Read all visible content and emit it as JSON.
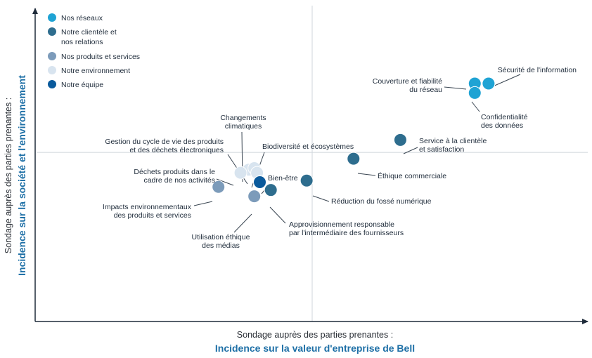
{
  "chart_data": {
    "type": "scatter",
    "title": "",
    "xlabel": "Sondage auprès des parties prenantes :",
    "xlabel_emphasis": "Incidence sur la valeur d'entreprise de Bell",
    "ylabel": "Sondage auprès des parties prenantes :",
    "ylabel_emphasis": "Incidence sur la société et l'environnement",
    "xlim": [
      0,
      10
    ],
    "ylim": [
      0,
      10
    ],
    "grid": false,
    "quadrant_dividers": {
      "x": 5.0,
      "y": 5.4
    },
    "legend_position": "top-left",
    "categories": [
      {
        "key": "reseaux",
        "name": "Nos réseaux",
        "color": "#1fa3d4"
      },
      {
        "key": "clientele",
        "name": "Notre clientèle et\nnos relations",
        "color": "#2e6d8e"
      },
      {
        "key": "produits",
        "name": "Nos produits et services",
        "color": "#7c9bba"
      },
      {
        "key": "environnement",
        "name": "Notre environnement",
        "color": "#d8e4ef"
      },
      {
        "key": "equipe",
        "name": "Notre équipe",
        "color": "#0a5a9c"
      }
    ],
    "points": [
      {
        "label": "Sécurité de l'information",
        "category": "reseaux",
        "x": 8.2,
        "y": 7.6
      },
      {
        "label": "Couverture et fiabilité\ndu réseau",
        "category": "reseaux",
        "x": 7.95,
        "y": 7.6
      },
      {
        "label": "Confidentialité\ndes données",
        "category": "reseaux",
        "x": 7.95,
        "y": 7.3
      },
      {
        "label": "Service à la clientèle\net satisfaction",
        "category": "clientele",
        "x": 6.6,
        "y": 5.8
      },
      {
        "label": "Éthique commerciale",
        "category": "clientele",
        "x": 5.75,
        "y": 5.2
      },
      {
        "label": "Réduction du fossé numérique",
        "category": "clientele",
        "x": 4.9,
        "y": 4.5
      },
      {
        "label": "Approvisionnement responsable\npar l'intermédiaire des fournisseurs",
        "category": "clientele",
        "x": 4.25,
        "y": 4.2
      },
      {
        "label": "Impacts environnementaux\ndes produits et services",
        "category": "produits",
        "x": 3.3,
        "y": 4.3
      },
      {
        "label": "Utilisation éthique\ndes médias",
        "category": "produits",
        "x": 3.95,
        "y": 4.0
      },
      {
        "label": "Changements\nclimatiques",
        "category": "environnement",
        "x": 3.85,
        "y": 4.85
      },
      {
        "label": "Gestion du cycle de vie des produits\net des déchets électroniques",
        "category": "environnement",
        "x": 3.95,
        "y": 4.9
      },
      {
        "label": "Biodiversité et écosystèmes",
        "category": "environnement",
        "x": 4.0,
        "y": 4.75
      },
      {
        "label": "Déchets produits dans le\ncadre de nos activités",
        "category": "environnement",
        "x": 3.7,
        "y": 4.75
      },
      {
        "label": "Bien-être",
        "category": "equipe",
        "x": 4.05,
        "y": 4.45
      }
    ]
  }
}
